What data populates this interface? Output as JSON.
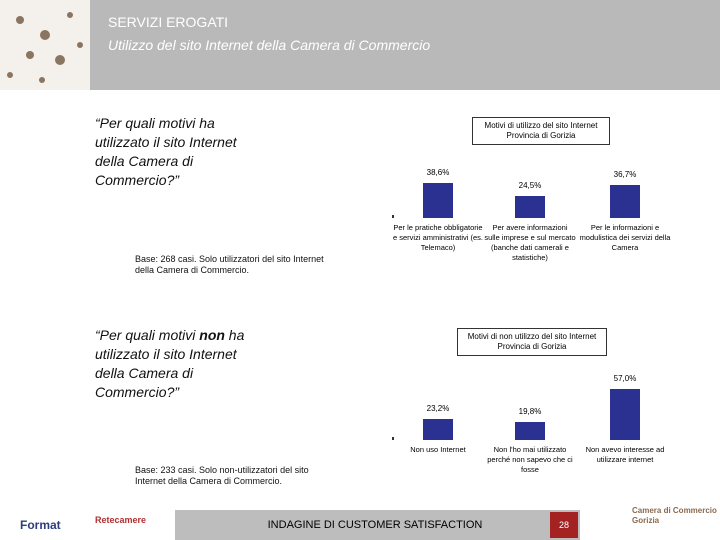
{
  "header": {
    "title": "SERVIZI EROGATI",
    "subtitle": "Utilizzo del sito Internet della Camera di Commercio"
  },
  "questions": [
    {
      "parts": [
        "“Per quali motivi ha utilizzato il sito Internet della Camera di Commercio?”"
      ]
    },
    {
      "parts": [
        "“Per quali motivi ",
        "non",
        " ha utilizzato il sito Internet della Camera di Commercio?”"
      ]
    }
  ],
  "base_notes": [
    "Base: 268 casi. Solo utilizzatori del sito Internet della Camera di Commercio.",
    "Base: 233 casi. Solo non-utilizzatori del sito Internet della Camera di Commercio."
  ],
  "chart_data": [
    {
      "type": "bar",
      "title": "Motivi di utilizzo del sito Internet Provincia di Gorizia",
      "categories": [
        "Per le pratiche obbligatorie e servizi amministrativi (es. Telemaco)",
        "Per avere informazioni sulle imprese e sul mercato (banche dati camerali e statistiche)",
        "Per le informazioni e modulistica dei servizi della Camera"
      ],
      "values": [
        38.6,
        24.5,
        36.7
      ],
      "value_labels": [
        "38,6%",
        "24,5%",
        "36,7%"
      ],
      "color": "#2b3190"
    },
    {
      "type": "bar",
      "title": "Motivi di non utilizzo del sito Internet Provincia di Gorizia",
      "categories": [
        "Non uso Internet",
        "Non l'ho mai utilizzato perché non sapevo che ci fosse",
        "Non avevo interesse ad utilizzare internet"
      ],
      "values": [
        23.2,
        19.8,
        57.0
      ],
      "value_labels": [
        "23,2%",
        "19,8%",
        "57,0%"
      ],
      "color": "#2b3190"
    }
  ],
  "footer": {
    "text": "INDAGINE DI CUSTOMER SATISFACTION",
    "page": "28",
    "logo_left": "Format",
    "logo_mid": "Retecamere",
    "logo_right": [
      "Camera di Commercio",
      "Gorizia"
    ]
  }
}
